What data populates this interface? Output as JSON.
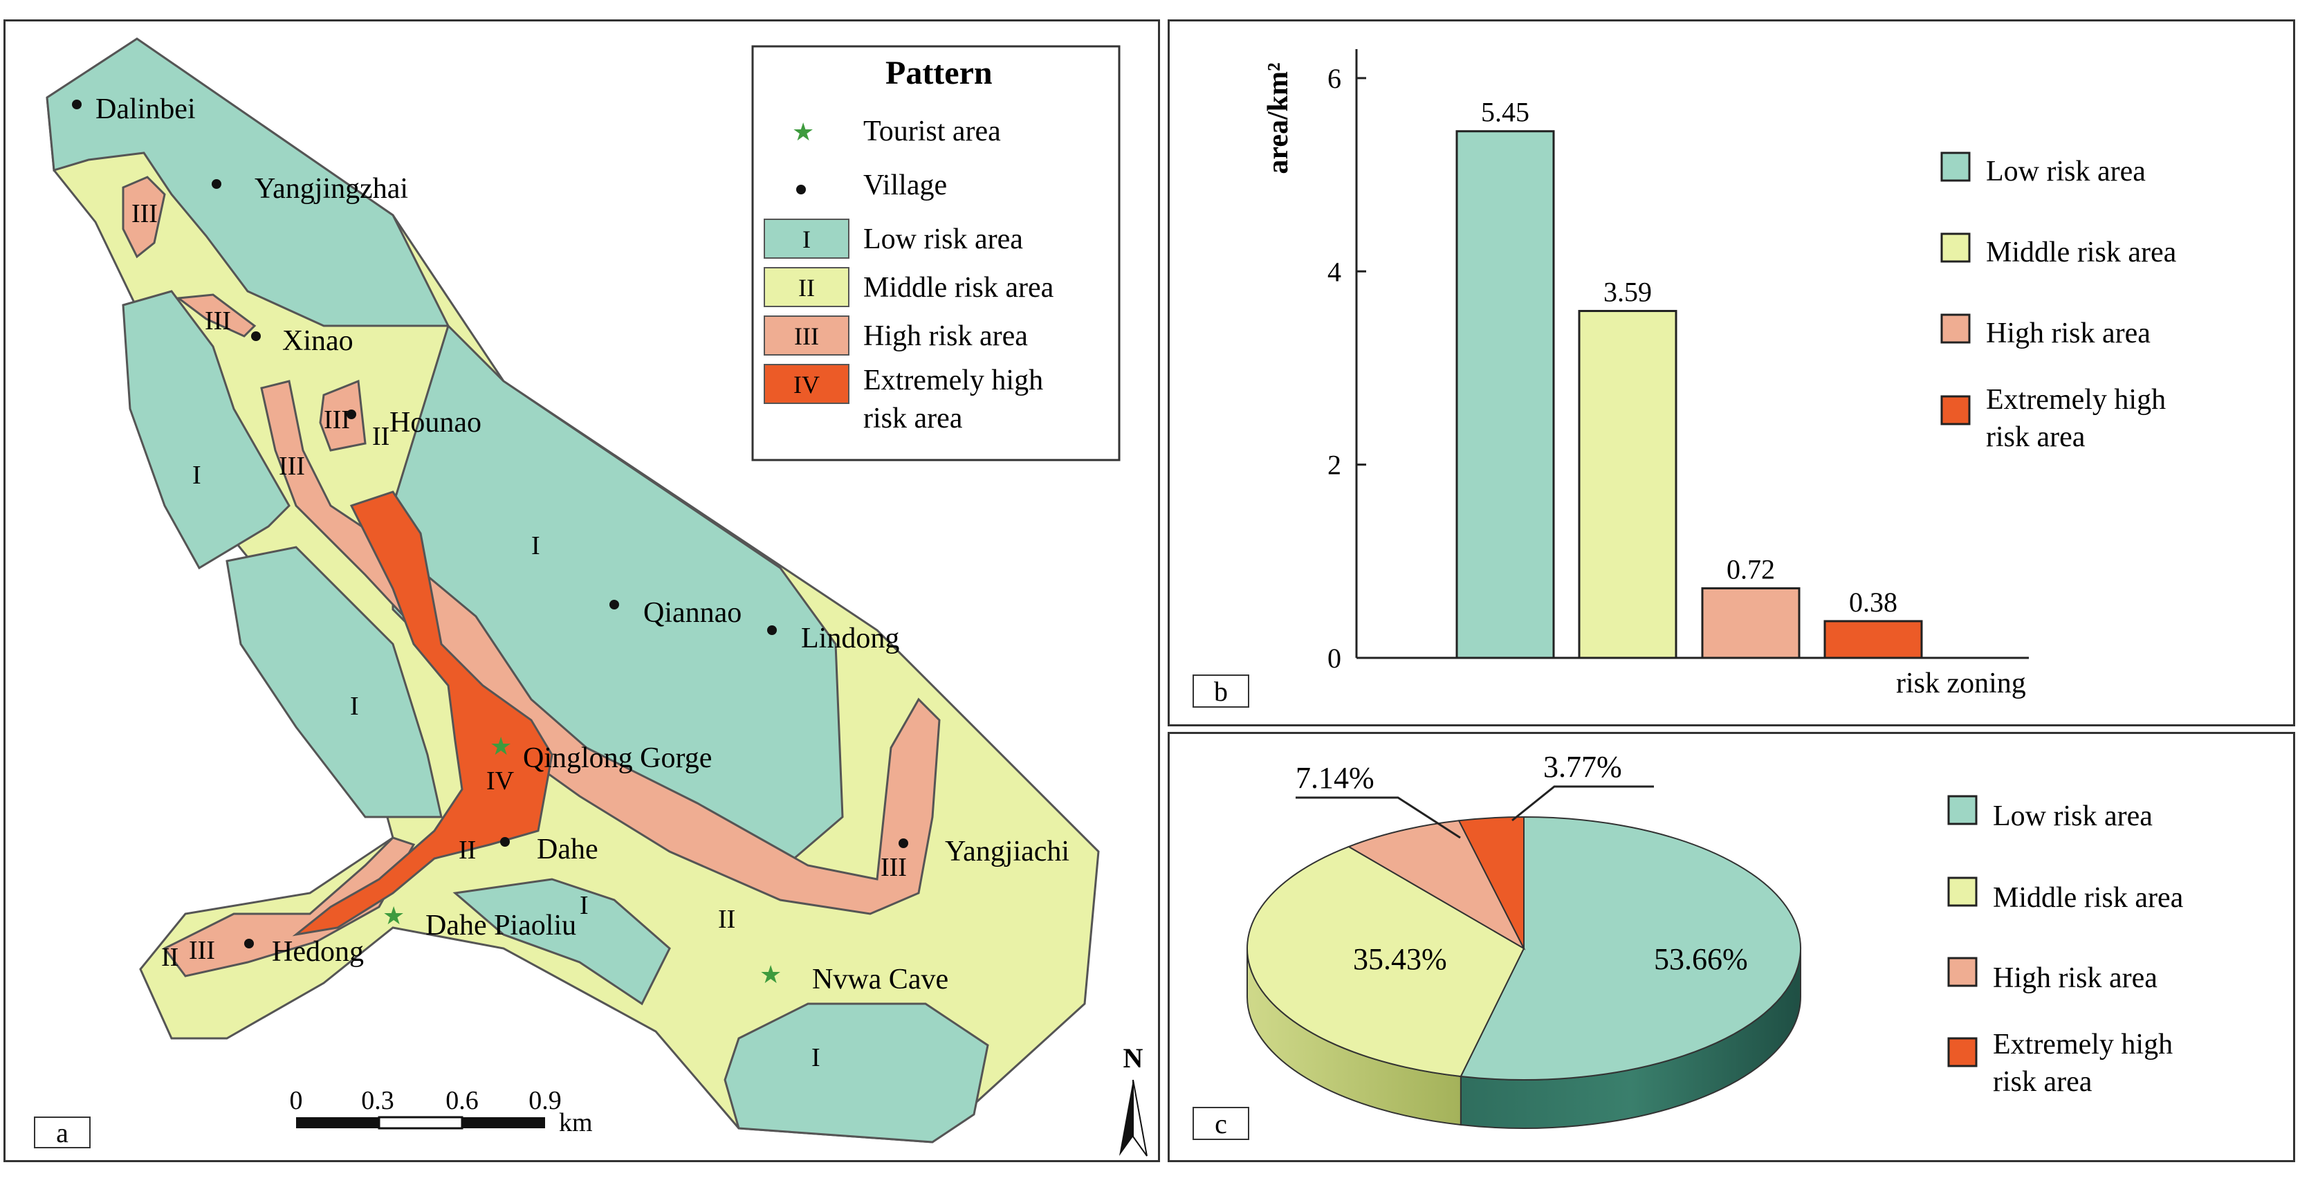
{
  "colors": {
    "low": "#9ed6c4",
    "middle": "#e9f2a7",
    "high": "#efad92",
    "extreme": "#ec5b27",
    "low_dark": "#2f6e5e",
    "middle_dark": "#b7c470"
  },
  "panel_a": {
    "label": "a",
    "legend": {
      "title": "Pattern",
      "items": [
        {
          "symbol": "★",
          "text": "Tourist area"
        },
        {
          "symbol": "•",
          "text": "Village"
        },
        {
          "symbol": "I",
          "text": "Low risk area"
        },
        {
          "symbol": "II",
          "text": "Middle risk area"
        },
        {
          "symbol": "III",
          "text": "High risk area"
        },
        {
          "symbol": "IV",
          "text": "Extremely high",
          "text2": "risk area"
        }
      ]
    },
    "villages": [
      "Dalinbei",
      "Yangjingzhai",
      "Xinao",
      "Hounao",
      "Qiannao",
      "Lindong",
      "Dahe",
      "Yangjiachi",
      "Hedong"
    ],
    "tourist_areas": [
      "Qinglong Gorge",
      "Dahe Piaoliu",
      "Nvwa Cave"
    ],
    "zone_labels": {
      "low": "I",
      "middle": "II",
      "high": "III",
      "extreme": "IV"
    },
    "scale": {
      "ticks": [
        "0",
        "0.3",
        "0.6",
        "0.9"
      ],
      "unit": "km"
    },
    "north": "N"
  },
  "chart_data": [
    {
      "type": "bar",
      "panel": "b",
      "categories": [
        "Low risk area",
        "Middle risk area",
        "High risk area",
        "Extremely high risk area"
      ],
      "values": [
        5.45,
        3.59,
        0.72,
        0.38
      ],
      "value_labels": [
        "5.45",
        "3.59",
        "0.72",
        "0.38"
      ],
      "ylabel": "area/km²",
      "xlabel": "risk  zoning",
      "ylim": [
        0,
        6.3
      ],
      "yticks": [
        0,
        2,
        4,
        6
      ],
      "legend": [
        "Low risk area",
        "Middle risk area",
        "High risk area",
        "Extremely high",
        "risk area"
      ]
    },
    {
      "type": "pie",
      "panel": "c",
      "categories": [
        "Low risk area",
        "Middle risk area",
        "High risk area",
        "Extremely high risk area"
      ],
      "values": [
        53.66,
        35.43,
        7.14,
        3.77
      ],
      "value_labels": [
        "53.66%",
        "35.43%",
        "7.14%",
        "3.77%"
      ],
      "legend": [
        "Low risk area",
        "Middle risk area",
        "High risk area",
        "Extremely high",
        "risk area"
      ]
    }
  ]
}
